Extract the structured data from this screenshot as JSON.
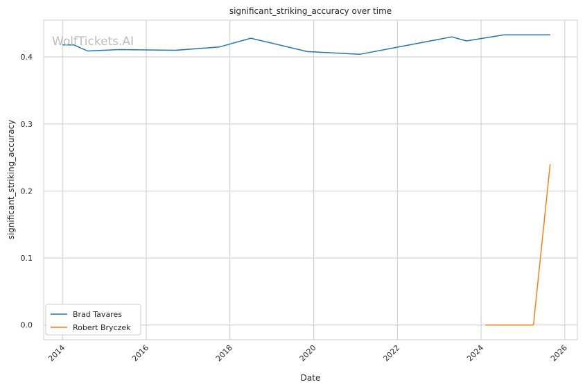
{
  "watermark": "WolfTickets.AI",
  "chart_data": {
    "type": "line",
    "title": "significant_striking_accuracy over time",
    "xlabel": "Date",
    "ylabel": "significant_striking_accuracy",
    "x_ticks": [
      "2014",
      "2016",
      "2018",
      "2020",
      "2022",
      "2024",
      "2026"
    ],
    "y_ticks": [
      "0.0",
      "0.1",
      "0.2",
      "0.3",
      "0.4"
    ],
    "xlim": [
      2013.55,
      2026.3
    ],
    "ylim": [
      -0.022,
      0.455
    ],
    "grid": true,
    "legend_position": "lower-left",
    "series": [
      {
        "name": "Brad Tavares",
        "color": "#1f77b4",
        "points": [
          {
            "x": 2014.0,
            "y": 0.418
          },
          {
            "x": 2014.27,
            "y": 0.418
          },
          {
            "x": 2014.6,
            "y": 0.409
          },
          {
            "x": 2015.35,
            "y": 0.411
          },
          {
            "x": 2016.7,
            "y": 0.41
          },
          {
            "x": 2017.75,
            "y": 0.415
          },
          {
            "x": 2018.5,
            "y": 0.428
          },
          {
            "x": 2019.85,
            "y": 0.408
          },
          {
            "x": 2021.1,
            "y": 0.404
          },
          {
            "x": 2023.3,
            "y": 0.43
          },
          {
            "x": 2023.65,
            "y": 0.424
          },
          {
            "x": 2024.55,
            "y": 0.433
          },
          {
            "x": 2025.65,
            "y": 0.433
          }
        ]
      },
      {
        "name": "Robert Bryczek",
        "color": "#ff7f0e",
        "points": [
          {
            "x": 2024.1,
            "y": 0.0
          },
          {
            "x": 2025.25,
            "y": 0.0
          },
          {
            "x": 2025.65,
            "y": 0.24
          }
        ]
      }
    ]
  }
}
